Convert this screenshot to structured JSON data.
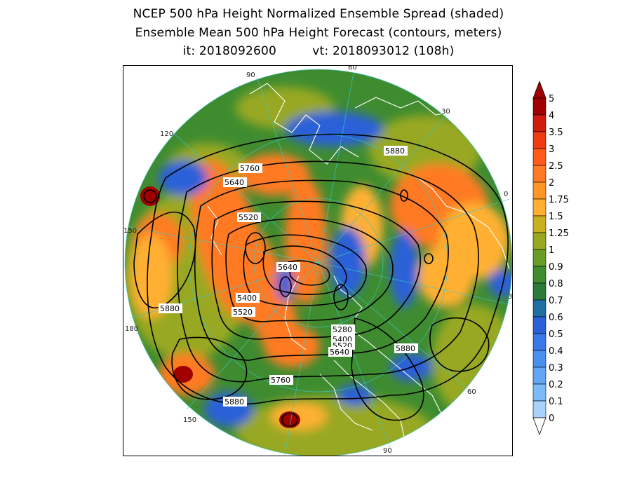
{
  "title": {
    "line1": "NCEP 500 hPa Height Normalized Ensemble Spread (shaded)",
    "line2": "Ensemble Mean 500 hPa Height Forecast (contours, meters)",
    "init_label": "it: 2018092600",
    "valid_label": "vt: 2018093012 (108h)"
  },
  "legend": {
    "levels": [
      "5",
      "4",
      "3.5",
      "3",
      "2.5",
      "2",
      "1.75",
      "1.5",
      "1.25",
      "1",
      "0.9",
      "0.8",
      "0.7",
      "0.6",
      "0.5",
      "0.4",
      "0.3",
      "0.2",
      "0.1",
      "0"
    ],
    "colors": [
      "#a00000",
      "#d01a0a",
      "#f03a10",
      "#ff5a1a",
      "#ff7a22",
      "#ff9626",
      "#ffb030",
      "#c8b020",
      "#98a820",
      "#6a9c28",
      "#3f8c30",
      "#2a7a3c",
      "#1f6fa0",
      "#2a60d8",
      "#3878e8",
      "#4a90f0",
      "#62a6f4",
      "#7cbaf8",
      "#a6d2fc"
    ],
    "max_triangle_color": "#a00000",
    "min_triangle_color": "#ffffff"
  },
  "map": {
    "projection": "north-polar-stereographic",
    "background_colors": {
      "high_spread": "#ff7a22",
      "mid_spread": "#98a820",
      "normal": "#3f8c30",
      "low_spread": "#2a60d8"
    },
    "longitude_labels": [
      "60",
      "30",
      "0",
      "30",
      "60",
      "90",
      "120",
      "150",
      "180",
      "150",
      "120",
      "90"
    ],
    "contour_labels": [
      "5880",
      "5760",
      "5640",
      "5520",
      "5640",
      "5400",
      "5520",
      "5880",
      "5280",
      "5400",
      "5520",
      "5640",
      "5880",
      "5760",
      "5880"
    ]
  }
}
